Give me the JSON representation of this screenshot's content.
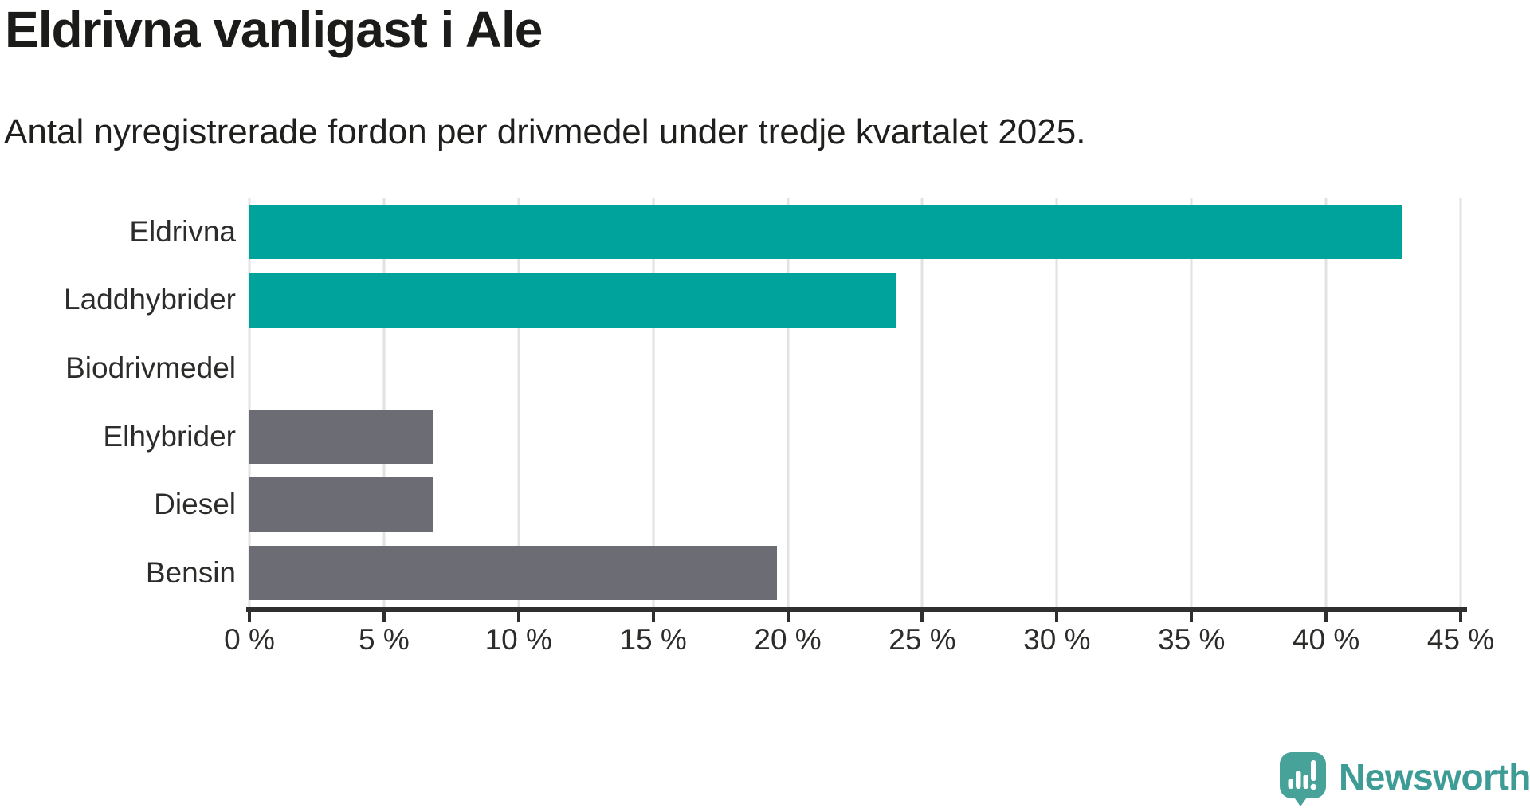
{
  "header": {
    "title": "Eldrivna vanligast i Ale",
    "subtitle": "Antal nyregistrerade fordon per drivmedel under tredje kvartalet 2025."
  },
  "chart_data": {
    "type": "bar",
    "orientation": "horizontal",
    "title": "Eldrivna vanligast i Ale",
    "subtitle": "Antal nyregistrerade fordon per drivmedel under tredje kvartalet 2025.",
    "categories": [
      "Eldrivna",
      "Laddhybrider",
      "Biodrivmedel",
      "Elhybrider",
      "Diesel",
      "Bensin"
    ],
    "values": [
      42.8,
      24,
      0,
      6.8,
      6.8,
      19.6
    ],
    "unit": "%",
    "bar_colors": [
      "#00a39b",
      "#00a39b",
      "#6c6c74",
      "#6c6c74",
      "#6c6c74",
      "#6c6c74"
    ],
    "xlim": [
      0,
      45
    ],
    "x_ticks": [
      0,
      5,
      10,
      15,
      20,
      25,
      30,
      35,
      40,
      45
    ],
    "x_tick_labels": [
      "0 %",
      "5 %",
      "10 %",
      "15 %",
      "20 %",
      "25 %",
      "30 %",
      "35 %",
      "40 %",
      "45 %"
    ],
    "grid": "vertical-on",
    "legend": "none",
    "highlight_color": "#00a39b",
    "default_color": "#6c6c74",
    "axis_color": "#2f2f2f",
    "gridline_color": "#e2e2e2"
  },
  "branding": {
    "logo_text": "Newsworthy",
    "logo_icon": "newsworthy-speech-bubble-barchart-icon",
    "logo_icon_color": "#47a29a",
    "logo_text_color": "#3d9c95"
  }
}
